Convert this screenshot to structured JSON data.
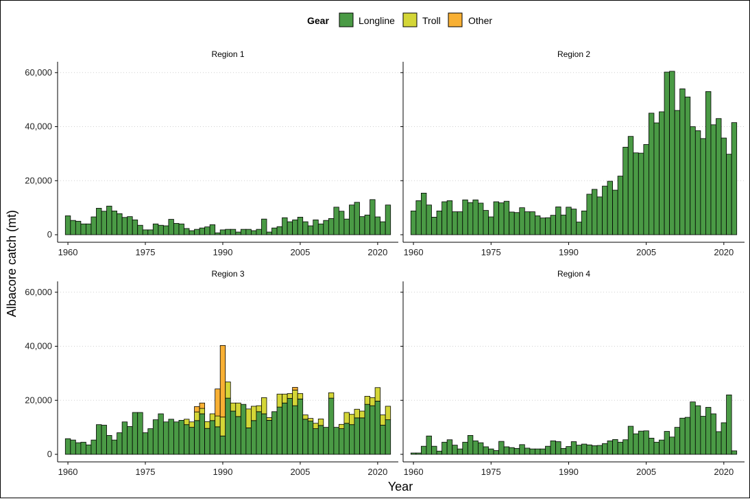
{
  "chart_data": {
    "type": "bar",
    "stacked": true,
    "xlabel": "Year",
    "ylabel": "Albacore catch (mt)",
    "ylim": [
      0,
      63000
    ],
    "yticks": [
      0,
      20000,
      40000,
      60000
    ],
    "ytick_labels": [
      "0",
      "20,000",
      "40,000",
      "60,000"
    ],
    "xticks": [
      1960,
      1975,
      1990,
      2005,
      2020
    ],
    "xlim": [
      1958,
      2024
    ],
    "grid": "horizontal dotted",
    "legend": {
      "title": "Gear",
      "placement": "top",
      "entries": [
        {
          "name": "Longline",
          "color": "#4a9a45"
        },
        {
          "name": "Troll",
          "color": "#d4d637"
        },
        {
          "name": "Other",
          "color": "#f8b034"
        }
      ]
    },
    "years": [
      1960,
      1961,
      1962,
      1963,
      1964,
      1965,
      1966,
      1967,
      1968,
      1969,
      1970,
      1971,
      1972,
      1973,
      1974,
      1975,
      1976,
      1977,
      1978,
      1979,
      1980,
      1981,
      1982,
      1983,
      1984,
      1985,
      1986,
      1987,
      1988,
      1989,
      1990,
      1991,
      1992,
      1993,
      1994,
      1995,
      1996,
      1997,
      1998,
      1999,
      2000,
      2001,
      2002,
      2003,
      2004,
      2005,
      2006,
      2007,
      2008,
      2009,
      2010,
      2011,
      2012,
      2013,
      2014,
      2015,
      2016,
      2017,
      2018,
      2019,
      2020,
      2021,
      2022
    ],
    "panels": [
      {
        "name": "Region 1",
        "longline": [
          7000,
          5300,
          5000,
          4000,
          4000,
          6600,
          9800,
          8700,
          10600,
          8800,
          7800,
          6400,
          6700,
          5500,
          3500,
          1800,
          1800,
          4000,
          3500,
          3300,
          5700,
          4200,
          4000,
          2300,
          1500,
          2000,
          2500,
          2900,
          3700,
          700,
          1800,
          2000,
          2000,
          1000,
          2000,
          2000,
          1500,
          2000,
          5800,
          1000,
          2500,
          3000,
          6300,
          4800,
          5500,
          6500,
          4800,
          3300,
          5500,
          4000,
          5300,
          6000,
          10200,
          8700,
          5800,
          11000,
          12000,
          6700,
          7300,
          13000,
          6600,
          4800,
          11000
        ],
        "troll": [],
        "other": []
      },
      {
        "name": "Region 2",
        "longline": [
          8800,
          12600,
          15400,
          11000,
          6500,
          8800,
          12200,
          12600,
          8500,
          8500,
          12900,
          11900,
          12900,
          11700,
          9000,
          6600,
          12200,
          11800,
          12400,
          8400,
          8200,
          10000,
          8500,
          8500,
          7000,
          6200,
          6300,
          7200,
          10300,
          7300,
          10200,
          9500,
          4700,
          8800,
          15000,
          16800,
          14000,
          18000,
          19800,
          16500,
          21700,
          32400,
          36400,
          30300,
          30200,
          33400,
          45000,
          41400,
          45500,
          60200,
          60500,
          46000,
          54000,
          51000,
          40000,
          38500,
          35600,
          53000,
          40700,
          43000,
          35800,
          29800,
          41500
        ],
        "troll": [],
        "other": []
      },
      {
        "name": "Region 3",
        "longline": [
          5800,
          5300,
          4300,
          4500,
          3500,
          5300,
          11000,
          10800,
          7000,
          5300,
          8000,
          12000,
          10300,
          15500,
          15500,
          8000,
          9500,
          12800,
          15000,
          12000,
          13000,
          12000,
          12600,
          11000,
          10000,
          12500,
          15000,
          9600,
          12500,
          10200,
          6800,
          20800,
          16000,
          14000,
          18500,
          9800,
          12500,
          15800,
          15000,
          12600,
          15800,
          17500,
          19000,
          20700,
          18000,
          20500,
          13000,
          12300,
          9500,
          10700,
          10000,
          20800,
          10000,
          9500,
          11500,
          11000,
          13500,
          13500,
          18500,
          18000,
          19700,
          10800,
          12800
        ],
        "troll": [
          0,
          0,
          0,
          0,
          0,
          0,
          0,
          0,
          0,
          0,
          0,
          0,
          0,
          0,
          0,
          0,
          0,
          0,
          0,
          0,
          0,
          0,
          0,
          2000,
          2000,
          3200,
          2000,
          2500,
          2500,
          4000,
          7000,
          6000,
          3000,
          5000,
          0,
          7000,
          5300,
          2200,
          6000,
          1000,
          0,
          4800,
          3300,
          1800,
          5800,
          2000,
          1600,
          1000,
          2000,
          2400,
          0,
          2000,
          0,
          1600,
          4000,
          3800,
          3200,
          2500,
          3000,
          3000,
          5000,
          3800,
          5000
        ],
        "other": [
          0,
          0,
          0,
          0,
          0,
          0,
          0,
          0,
          0,
          0,
          0,
          0,
          0,
          0,
          0,
          0,
          0,
          0,
          0,
          0,
          0,
          0,
          0,
          0,
          0,
          2000,
          2000,
          0,
          0,
          10000,
          26500,
          0,
          0,
          0,
          0,
          0,
          0,
          0,
          0,
          0,
          0,
          0,
          0,
          0,
          1000,
          0,
          0,
          0,
          0,
          0,
          0,
          0,
          0,
          0,
          0,
          0,
          0,
          0,
          0,
          0,
          0,
          0,
          0
        ]
      },
      {
        "name": "Region 4",
        "longline": [
          500,
          500,
          3000,
          6800,
          3000,
          1200,
          4500,
          5400,
          3400,
          2000,
          4500,
          7000,
          5000,
          4300,
          2800,
          2000,
          1400,
          4800,
          2800,
          2500,
          2200,
          3600,
          2300,
          2000,
          2000,
          2000,
          3000,
          5000,
          4700,
          2200,
          2900,
          4700,
          3400,
          3800,
          3500,
          3200,
          3300,
          4000,
          5000,
          5500,
          4500,
          5400,
          10400,
          7600,
          8600,
          8700,
          6000,
          4500,
          5300,
          8500,
          6400,
          10000,
          13400,
          13700,
          19400,
          18000,
          14100,
          17400,
          15000,
          8400,
          11700,
          22000,
          1300
        ],
        "troll": [],
        "other": []
      }
    ]
  }
}
